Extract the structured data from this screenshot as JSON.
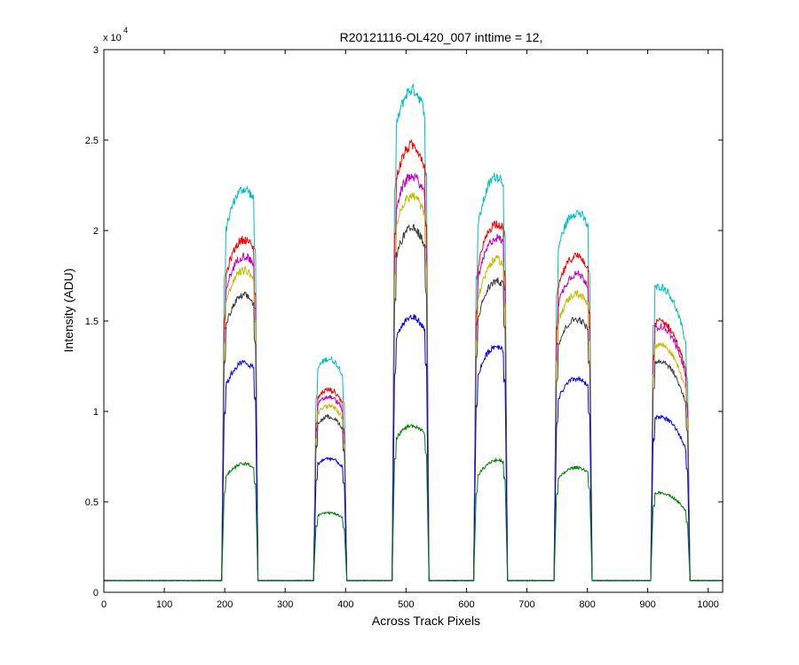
{
  "chart_data": {
    "type": "line",
    "title": "R20121116-OL420_007 inttime = 12,",
    "xlabel": "Across Track Pixels",
    "ylabel": "Intensity (ADU)",
    "y_exponent_base": "x 10",
    "y_exponent_power": "4",
    "xlim": [
      0,
      1024
    ],
    "ylim": [
      0,
      30000
    ],
    "xticks": [
      0,
      100,
      200,
      300,
      400,
      500,
      600,
      700,
      800,
      900,
      1000
    ],
    "yticks": [
      0,
      5000,
      10000,
      15000,
      20000,
      25000,
      30000
    ],
    "ytick_labels": [
      "0",
      "0.5",
      "1",
      "1.5",
      "2",
      "2.5",
      "3"
    ],
    "grid": false,
    "legend": "none",
    "baseline": 650,
    "bands": [
      {
        "start": 195,
        "end": 255,
        "peak_x": 232
      },
      {
        "start": 347,
        "end": 402,
        "peak_x": 372
      },
      {
        "start": 477,
        "end": 538,
        "peak_x": 510
      },
      {
        "start": 612,
        "end": 668,
        "peak_x": 650
      },
      {
        "start": 745,
        "end": 808,
        "peak_x": 782
      },
      {
        "start": 905,
        "end": 970,
        "peak_x": 920
      }
    ],
    "series": [
      {
        "color": "#00bfbf",
        "peaks": [
          22300,
          12900,
          27800,
          23000,
          21000,
          16900
        ]
      },
      {
        "color": "#ff0000",
        "peaks": [
          19500,
          11200,
          24700,
          20400,
          18600,
          15000
        ]
      },
      {
        "color": "#bf00bf",
        "peaks": [
          18600,
          10800,
          23000,
          19600,
          17600,
          14700
        ]
      },
      {
        "color": "#bfbf00",
        "peaks": [
          17800,
          10300,
          21900,
          18400,
          16500,
          13700
        ]
      },
      {
        "color": "#404040",
        "peaks": [
          16400,
          9700,
          20100,
          17200,
          15100,
          12800
        ]
      },
      {
        "color": "#0000ff",
        "peaks": [
          12700,
          7400,
          15200,
          13600,
          11800,
          9700
        ]
      },
      {
        "color": "#008000",
        "peaks": [
          7100,
          4400,
          9200,
          7300,
          6900,
          5500
        ]
      }
    ]
  }
}
